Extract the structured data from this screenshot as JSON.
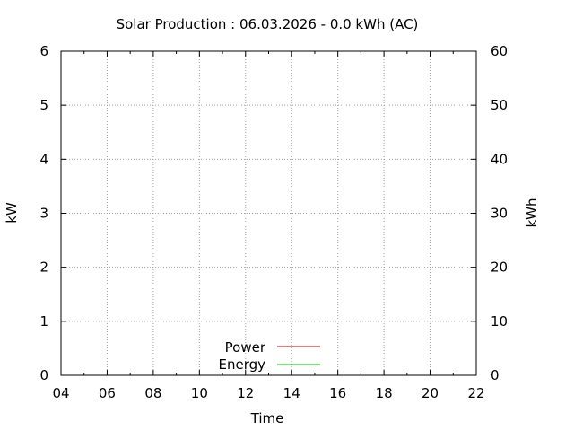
{
  "chart_data": {
    "type": "line",
    "title": "Solar Production : 06.03.2026 - 0.0 kWh (AC)",
    "xlabel": "Time",
    "ylabel": "kW",
    "y2label": "kWh",
    "xlim": [
      4,
      22
    ],
    "ylim": [
      0,
      6
    ],
    "y2lim": [
      0,
      60
    ],
    "x_ticks": [
      "04",
      "06",
      "08",
      "10",
      "12",
      "14",
      "16",
      "18",
      "20",
      "22"
    ],
    "y_ticks": [
      "0",
      "1",
      "2",
      "3",
      "4",
      "5",
      "6"
    ],
    "y2_ticks": [
      "0",
      "10",
      "20",
      "30",
      "40",
      "50",
      "60"
    ],
    "grid": true,
    "legend_position": "bottom-center",
    "series": [
      {
        "name": "Power",
        "axis": "y",
        "color": "#b00000",
        "x": [],
        "values": []
      },
      {
        "name": "Energy",
        "axis": "y2",
        "color": "#00c000",
        "x": [],
        "values": []
      }
    ]
  }
}
